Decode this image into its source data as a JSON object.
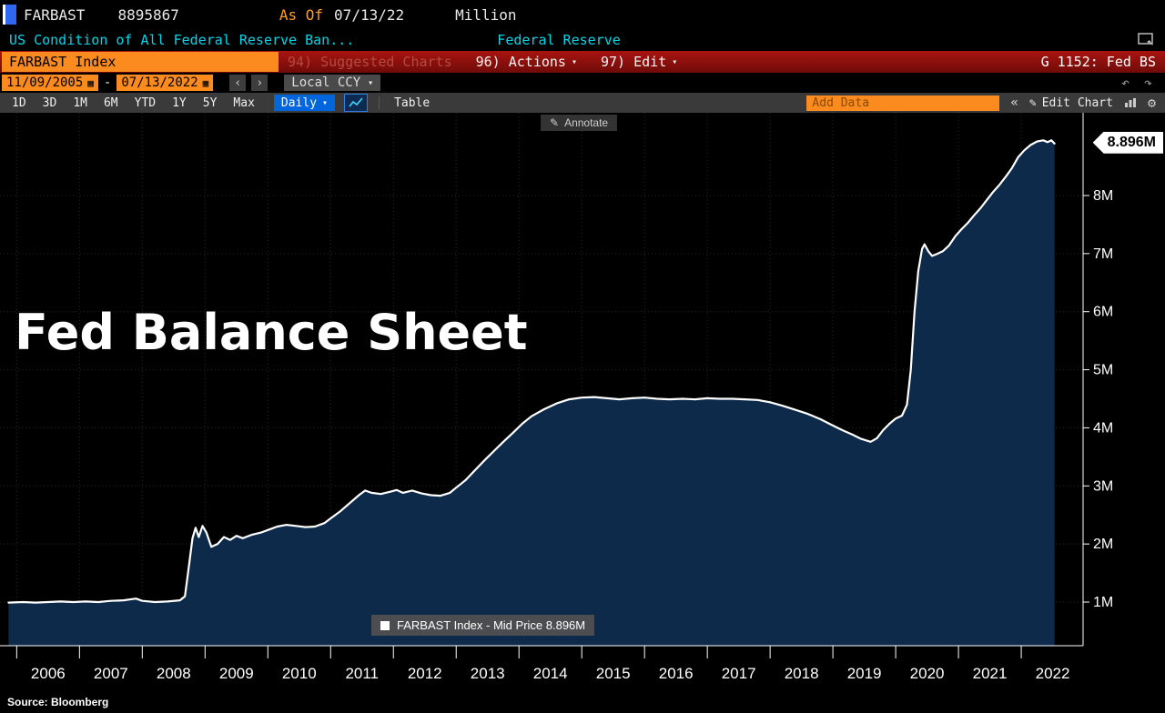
{
  "header": {
    "ticker": "FARBAST",
    "value": "8895867",
    "as_of_label": "As Of",
    "as_of_date": "07/13/22",
    "unit": "Million",
    "description": "US Condition of All Federal Reserve Ban...",
    "org": "Federal Reserve"
  },
  "menubar": {
    "security_field": "FARBAST Index",
    "suggested_charts": "94) Suggested Charts",
    "actions": "96) Actions",
    "edit": "97) Edit",
    "chart_tag": "G 1152: Fed BS"
  },
  "controls": {
    "date_from": "11/09/2005",
    "date_to": "07/13/2022",
    "range_separator": "-",
    "prev_label": "‹",
    "next_label": "›",
    "currency": "Local CCY",
    "periods": [
      "1D",
      "3D",
      "1M",
      "6M",
      "YTD",
      "1Y",
      "5Y",
      "Max"
    ],
    "frequency": "Daily",
    "table_label": "Table",
    "add_data_placeholder": "Add Data",
    "collapse_label": "«",
    "edit_chart_label": "Edit Chart"
  },
  "chart": {
    "title": "Fed Balance Sheet",
    "annotate_label": "Annotate",
    "last_value": "8.896M",
    "legend": "FARBAST Index - Mid Price 8.896M"
  },
  "footer": {
    "source": "Source: Bloomberg"
  },
  "colors": {
    "amber": "#fb8b1e",
    "red_bar": "#8a100b",
    "cyan": "#00d5e8",
    "accent_blue": "#0066dd",
    "area_fill": "#0e2a4a",
    "line": "#ffffff"
  },
  "chart_data": {
    "type": "area",
    "title": "Fed Balance Sheet",
    "series_name": "FARBAST Index - Mid Price",
    "unit": "Million USD",
    "last_value": 8.896,
    "last_value_label": "8.896M",
    "xlim": [
      2005.85,
      2022.55
    ],
    "ylim": [
      0,
      9.15
    ],
    "y_ticks": [
      1,
      2,
      3,
      4,
      5,
      6,
      7,
      8
    ],
    "y_tick_suffix": "M",
    "x_ticks": [
      2006,
      2007,
      2008,
      2009,
      2010,
      2011,
      2012,
      2013,
      2014,
      2015,
      2016,
      2017,
      2018,
      2019,
      2020,
      2021,
      2022
    ],
    "grid": true,
    "legend_position": "bottom",
    "points": [
      [
        2005.87,
        0.99
      ],
      [
        2006.1,
        1.0
      ],
      [
        2006.3,
        0.99
      ],
      [
        2006.5,
        1.0
      ],
      [
        2006.7,
        1.01
      ],
      [
        2006.9,
        1.0
      ],
      [
        2007.1,
        1.01
      ],
      [
        2007.3,
        1.0
      ],
      [
        2007.5,
        1.02
      ],
      [
        2007.7,
        1.03
      ],
      [
        2007.9,
        1.06
      ],
      [
        2008.0,
        1.02
      ],
      [
        2008.2,
        1.0
      ],
      [
        2008.4,
        1.01
      ],
      [
        2008.6,
        1.03
      ],
      [
        2008.68,
        1.1
      ],
      [
        2008.74,
        1.6
      ],
      [
        2008.8,
        2.1
      ],
      [
        2008.85,
        2.28
      ],
      [
        2008.9,
        2.12
      ],
      [
        2008.96,
        2.31
      ],
      [
        2009.02,
        2.2
      ],
      [
        2009.1,
        1.95
      ],
      [
        2009.2,
        2.0
      ],
      [
        2009.3,
        2.12
      ],
      [
        2009.4,
        2.07
      ],
      [
        2009.5,
        2.14
      ],
      [
        2009.6,
        2.1
      ],
      [
        2009.75,
        2.16
      ],
      [
        2009.9,
        2.2
      ],
      [
        2010.0,
        2.24
      ],
      [
        2010.15,
        2.3
      ],
      [
        2010.3,
        2.33
      ],
      [
        2010.45,
        2.31
      ],
      [
        2010.6,
        2.29
      ],
      [
        2010.75,
        2.3
      ],
      [
        2010.9,
        2.36
      ],
      [
        2011.0,
        2.44
      ],
      [
        2011.15,
        2.56
      ],
      [
        2011.3,
        2.7
      ],
      [
        2011.45,
        2.84
      ],
      [
        2011.55,
        2.92
      ],
      [
        2011.65,
        2.88
      ],
      [
        2011.8,
        2.86
      ],
      [
        2011.95,
        2.9
      ],
      [
        2012.05,
        2.93
      ],
      [
        2012.15,
        2.88
      ],
      [
        2012.3,
        2.92
      ],
      [
        2012.45,
        2.87
      ],
      [
        2012.6,
        2.84
      ],
      [
        2012.75,
        2.83
      ],
      [
        2012.9,
        2.88
      ],
      [
        2013.0,
        2.97
      ],
      [
        2013.15,
        3.1
      ],
      [
        2013.3,
        3.27
      ],
      [
        2013.45,
        3.44
      ],
      [
        2013.6,
        3.6
      ],
      [
        2013.75,
        3.76
      ],
      [
        2013.9,
        3.91
      ],
      [
        2014.05,
        4.07
      ],
      [
        2014.2,
        4.2
      ],
      [
        2014.4,
        4.32
      ],
      [
        2014.6,
        4.42
      ],
      [
        2014.8,
        4.49
      ],
      [
        2015.0,
        4.52
      ],
      [
        2015.2,
        4.53
      ],
      [
        2015.4,
        4.51
      ],
      [
        2015.6,
        4.49
      ],
      [
        2015.8,
        4.51
      ],
      [
        2016.0,
        4.52
      ],
      [
        2016.2,
        4.5
      ],
      [
        2016.4,
        4.49
      ],
      [
        2016.6,
        4.5
      ],
      [
        2016.8,
        4.49
      ],
      [
        2017.0,
        4.51
      ],
      [
        2017.2,
        4.5
      ],
      [
        2017.4,
        4.5
      ],
      [
        2017.6,
        4.49
      ],
      [
        2017.8,
        4.48
      ],
      [
        2018.0,
        4.44
      ],
      [
        2018.2,
        4.38
      ],
      [
        2018.4,
        4.31
      ],
      [
        2018.6,
        4.24
      ],
      [
        2018.8,
        4.15
      ],
      [
        2019.0,
        4.04
      ],
      [
        2019.15,
        3.96
      ],
      [
        2019.3,
        3.89
      ],
      [
        2019.45,
        3.81
      ],
      [
        2019.6,
        3.76
      ],
      [
        2019.7,
        3.82
      ],
      [
        2019.8,
        3.96
      ],
      [
        2019.9,
        4.07
      ],
      [
        2020.0,
        4.16
      ],
      [
        2020.1,
        4.21
      ],
      [
        2020.18,
        4.4
      ],
      [
        2020.24,
        5.0
      ],
      [
        2020.3,
        6.0
      ],
      [
        2020.36,
        6.7
      ],
      [
        2020.42,
        7.08
      ],
      [
        2020.46,
        7.16
      ],
      [
        2020.52,
        7.04
      ],
      [
        2020.58,
        6.96
      ],
      [
        2020.65,
        6.99
      ],
      [
        2020.75,
        7.04
      ],
      [
        2020.85,
        7.14
      ],
      [
        2020.95,
        7.3
      ],
      [
        2021.05,
        7.42
      ],
      [
        2021.15,
        7.53
      ],
      [
        2021.25,
        7.66
      ],
      [
        2021.35,
        7.78
      ],
      [
        2021.45,
        7.92
      ],
      [
        2021.55,
        8.06
      ],
      [
        2021.65,
        8.18
      ],
      [
        2021.75,
        8.32
      ],
      [
        2021.85,
        8.47
      ],
      [
        2021.95,
        8.66
      ],
      [
        2022.05,
        8.78
      ],
      [
        2022.15,
        8.87
      ],
      [
        2022.25,
        8.93
      ],
      [
        2022.35,
        8.95
      ],
      [
        2022.42,
        8.92
      ],
      [
        2022.48,
        8.95
      ],
      [
        2022.53,
        8.896
      ]
    ]
  }
}
